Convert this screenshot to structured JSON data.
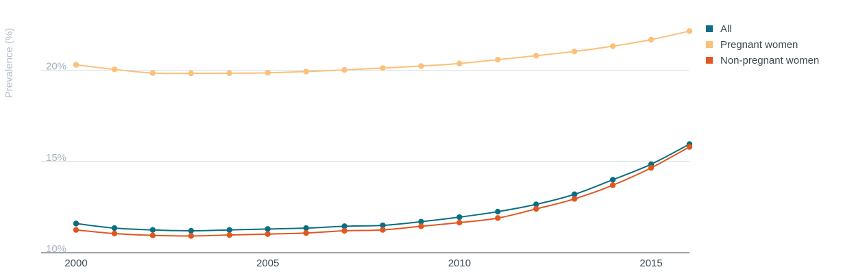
{
  "chart_data": {
    "type": "line",
    "title": "",
    "xlabel": "",
    "ylabel": "Prevalence (%)",
    "x": [
      2000,
      2001,
      2002,
      2003,
      2004,
      2005,
      2006,
      2007,
      2008,
      2009,
      2010,
      2011,
      2012,
      2013,
      2014,
      2015,
      2016
    ],
    "xticks": [
      2000,
      2005,
      2010,
      2015
    ],
    "xtick_labels": [
      "2000",
      "2005",
      "2010",
      "2015"
    ],
    "yticks": [
      10,
      15,
      20
    ],
    "ytick_labels": [
      "10%",
      "15%",
      "20%"
    ],
    "ylim": [
      10,
      22.5
    ],
    "xlim": [
      2000,
      2016
    ],
    "grid": true,
    "legend_position": "top-right",
    "series": [
      {
        "name": "All",
        "color": "#0b6e82",
        "values": [
          11.6,
          11.35,
          11.25,
          11.2,
          11.25,
          11.3,
          11.35,
          11.45,
          11.5,
          11.7,
          11.95,
          12.25,
          12.65,
          13.2,
          14.0,
          14.85,
          15.95
        ]
      },
      {
        "name": "Pregnant women",
        "color": "#fbc07a",
        "values": [
          20.3,
          20.05,
          19.85,
          19.83,
          19.84,
          19.86,
          19.93,
          20.02,
          20.12,
          20.23,
          20.37,
          20.58,
          20.8,
          21.03,
          21.32,
          21.68,
          22.15
        ]
      },
      {
        "name": "Non-pregnant women",
        "color": "#e2561f",
        "values": [
          11.25,
          11.05,
          10.95,
          10.92,
          10.97,
          11.02,
          11.08,
          11.2,
          11.25,
          11.45,
          11.65,
          11.9,
          12.4,
          12.95,
          13.7,
          14.65,
          15.8
        ]
      }
    ]
  }
}
